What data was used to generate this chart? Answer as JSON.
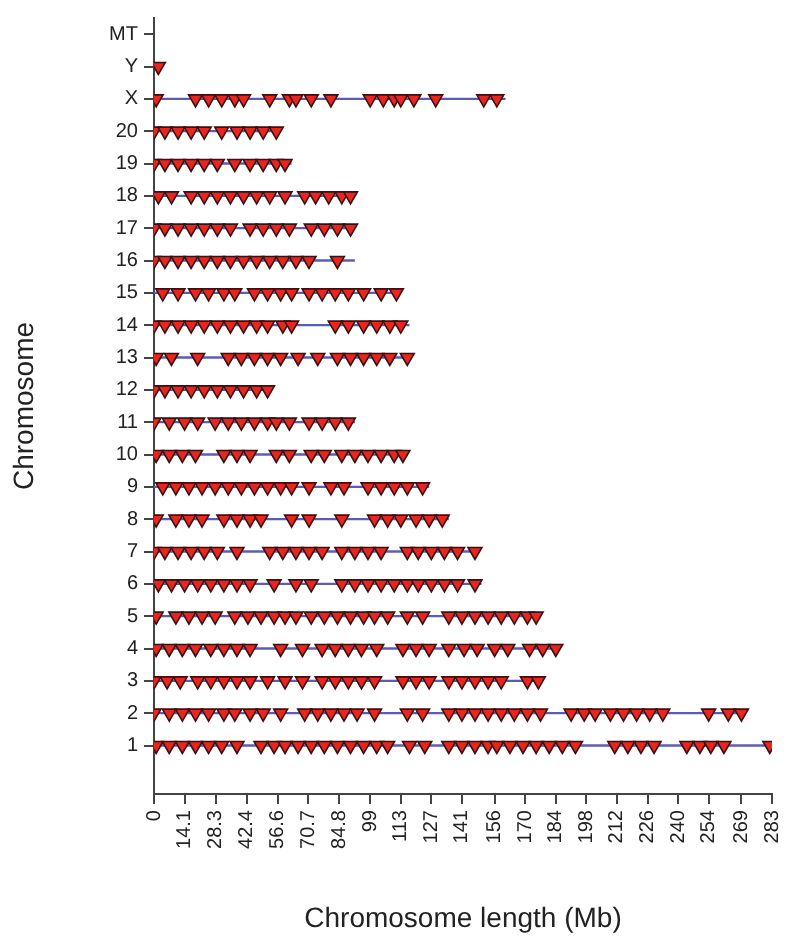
{
  "chart_data": {
    "type": "scatter",
    "xlabel": "Chromosome length (Mb)",
    "ylabel": "Chromosome",
    "xlim": [
      0,
      283
    ],
    "xticks": [
      0,
      14.1,
      28.3,
      42.4,
      56.6,
      70.7,
      84.8,
      99,
      113,
      127,
      141,
      156,
      170,
      184,
      198,
      212,
      226,
      240,
      254,
      269,
      283
    ],
    "ylim": [
      -0.5,
      23.5
    ],
    "yticks": [
      {
        "value": 1,
        "label": "1"
      },
      {
        "value": 2,
        "label": "2"
      },
      {
        "value": 3,
        "label": "3"
      },
      {
        "value": 4,
        "label": "4"
      },
      {
        "value": 5,
        "label": "5"
      },
      {
        "value": 6,
        "label": "6"
      },
      {
        "value": 7,
        "label": "7"
      },
      {
        "value": 8,
        "label": "8"
      },
      {
        "value": 9,
        "label": "9"
      },
      {
        "value": 10,
        "label": "10"
      },
      {
        "value": 11,
        "label": "11"
      },
      {
        "value": 12,
        "label": "12"
      },
      {
        "value": 13,
        "label": "13"
      },
      {
        "value": 14,
        "label": "14"
      },
      {
        "value": 15,
        "label": "15"
      },
      {
        "value": 16,
        "label": "16"
      },
      {
        "value": 17,
        "label": "17"
      },
      {
        "value": 18,
        "label": "18"
      },
      {
        "value": 19,
        "label": "19"
      },
      {
        "value": 20,
        "label": "20"
      },
      {
        "value": 21,
        "label": "X"
      },
      {
        "value": 22,
        "label": "Y"
      },
      {
        "value": 23,
        "label": "MT"
      }
    ],
    "grid": false,
    "legend": false,
    "marker": "triangle",
    "series": [
      {
        "type": "line",
        "marker": "none",
        "color": "#5c5cb8",
        "x": [
          0,
          282
        ],
        "values": [
          1,
          1
        ]
      },
      {
        "type": "line",
        "marker": "none",
        "color": "#5c5cb8",
        "x": [
          0,
          270
        ],
        "values": [
          2,
          2
        ]
      },
      {
        "type": "line",
        "marker": "none",
        "color": "#5c5cb8",
        "x": [
          0,
          178
        ],
        "values": [
          3,
          3
        ]
      },
      {
        "type": "line",
        "marker": "none",
        "color": "#5c5cb8",
        "x": [
          0,
          186
        ],
        "values": [
          4,
          4
        ]
      },
      {
        "type": "line",
        "marker": "none",
        "color": "#5c5cb8",
        "x": [
          0,
          175
        ],
        "values": [
          5,
          5
        ]
      },
      {
        "type": "line",
        "marker": "none",
        "color": "#5c5cb8",
        "x": [
          0,
          150
        ],
        "values": [
          6,
          6
        ]
      },
      {
        "type": "line",
        "marker": "none",
        "color": "#5c5cb8",
        "x": [
          0,
          148
        ],
        "values": [
          7,
          7
        ]
      },
      {
        "type": "line",
        "marker": "none",
        "color": "#5c5cb8",
        "x": [
          0,
          135
        ],
        "values": [
          8,
          8
        ]
      },
      {
        "type": "line",
        "marker": "none",
        "color": "#5c5cb8",
        "x": [
          0,
          126
        ],
        "values": [
          9,
          9
        ]
      },
      {
        "type": "line",
        "marker": "none",
        "color": "#5c5cb8",
        "x": [
          0,
          116
        ],
        "values": [
          10,
          10
        ]
      },
      {
        "type": "line",
        "marker": "none",
        "color": "#5c5cb8",
        "x": [
          0,
          92
        ],
        "values": [
          11,
          11
        ]
      },
      {
        "type": "line",
        "marker": "none",
        "color": "#5c5cb8",
        "x": [
          0,
          53
        ],
        "values": [
          12,
          12
        ]
      },
      {
        "type": "line",
        "marker": "none",
        "color": "#5c5cb8",
        "x": [
          0,
          118
        ],
        "values": [
          13,
          13
        ]
      },
      {
        "type": "line",
        "marker": "none",
        "color": "#5c5cb8",
        "x": [
          0,
          117
        ],
        "values": [
          14,
          14
        ]
      },
      {
        "type": "line",
        "marker": "none",
        "color": "#5c5cb8",
        "x": [
          0,
          113
        ],
        "values": [
          15,
          15
        ]
      },
      {
        "type": "line",
        "marker": "none",
        "color": "#5c5cb8",
        "x": [
          0,
          92
        ],
        "values": [
          16,
          16
        ]
      },
      {
        "type": "line",
        "marker": "none",
        "color": "#5c5cb8",
        "x": [
          0,
          92
        ],
        "values": [
          17,
          17
        ]
      },
      {
        "type": "line",
        "marker": "none",
        "color": "#5c5cb8",
        "x": [
          0,
          92
        ],
        "values": [
          18,
          18
        ]
      },
      {
        "type": "line",
        "marker": "none",
        "color": "#5c5cb8",
        "x": [
          0,
          63
        ],
        "values": [
          19,
          19
        ]
      },
      {
        "type": "line",
        "marker": "none",
        "color": "#5c5cb8",
        "x": [
          0,
          58
        ],
        "values": [
          20,
          20
        ]
      },
      {
        "type": "line",
        "marker": "none",
        "color": "#5c5cb8",
        "x": [
          0,
          161
        ],
        "values": [
          21,
          21
        ]
      },
      {
        "color": "#e8261f",
        "x": [
          1,
          7,
          13,
          19,
          25,
          31,
          38,
          49,
          55,
          60,
          66,
          72,
          78,
          84,
          90,
          96,
          102,
          107,
          117,
          124,
          135,
          141,
          147,
          153,
          157,
          163,
          169,
          175,
          181,
          187,
          193,
          211,
          217,
          223,
          229,
          244,
          250,
          255,
          261,
          282
        ],
        "values": [
          1,
          1,
          1,
          1,
          1,
          1,
          1,
          1,
          1,
          1,
          1,
          1,
          1,
          1,
          1,
          1,
          1,
          1,
          1,
          1,
          1,
          1,
          1,
          1,
          1,
          1,
          1,
          1,
          1,
          1,
          1,
          1,
          1,
          1,
          1,
          1,
          1,
          1,
          1,
          1
        ]
      },
      {
        "color": "#e8261f",
        "x": [
          0,
          7,
          13,
          19,
          25,
          32,
          37,
          44,
          50,
          58,
          69,
          75,
          81,
          87,
          93,
          101,
          116,
          123,
          135,
          141,
          147,
          153,
          159,
          165,
          171,
          177,
          191,
          197,
          202,
          209,
          215,
          221,
          227,
          233,
          254,
          263,
          269
        ],
        "values": [
          2,
          2,
          2,
          2,
          2,
          2,
          2,
          2,
          2,
          2,
          2,
          2,
          2,
          2,
          2,
          2,
          2,
          2,
          2,
          2,
          2,
          2,
          2,
          2,
          2,
          2,
          2,
          2,
          2,
          2,
          2,
          2,
          2,
          2,
          2,
          2,
          2
        ]
      },
      {
        "color": "#e8261f",
        "x": [
          0,
          6,
          12,
          20,
          26,
          32,
          38,
          44,
          52,
          60,
          68,
          77,
          83,
          89,
          95,
          101,
          114,
          120,
          126,
          135,
          141,
          147,
          153,
          159,
          171,
          176
        ],
        "values": [
          3,
          3,
          3,
          3,
          3,
          3,
          3,
          3,
          3,
          3,
          3,
          3,
          3,
          3,
          3,
          3,
          3,
          3,
          3,
          3,
          3,
          3,
          3,
          3,
          3,
          3
        ]
      },
      {
        "color": "#e8261f",
        "x": [
          1,
          7,
          13,
          19,
          26,
          32,
          38,
          44,
          58,
          68,
          77,
          83,
          89,
          95,
          102,
          114,
          120,
          126,
          135,
          142,
          148,
          156,
          162,
          172,
          178,
          184
        ],
        "values": [
          4,
          4,
          4,
          4,
          4,
          4,
          4,
          4,
          4,
          4,
          4,
          4,
          4,
          4,
          4,
          4,
          4,
          4,
          4,
          4,
          4,
          4,
          4,
          4,
          4,
          4
        ]
      },
      {
        "color": "#e8261f",
        "x": [
          1,
          10,
          16,
          22,
          28,
          37,
          43,
          49,
          55,
          60,
          65,
          72,
          78,
          84,
          90,
          96,
          101,
          107,
          116,
          123,
          135,
          141,
          147,
          153,
          159,
          165,
          171,
          175
        ],
        "values": [
          5,
          5,
          5,
          5,
          5,
          5,
          5,
          5,
          5,
          5,
          5,
          5,
          5,
          5,
          5,
          5,
          5,
          5,
          5,
          5,
          5,
          5,
          5,
          5,
          5,
          5,
          5,
          5
        ]
      },
      {
        "color": "#e8261f",
        "x": [
          2,
          8,
          14,
          20,
          26,
          32,
          38,
          44,
          55,
          65,
          72,
          86,
          92,
          98,
          104,
          110,
          116,
          121,
          127,
          133,
          139,
          147
        ],
        "values": [
          6,
          6,
          6,
          6,
          6,
          6,
          6,
          6,
          6,
          6,
          6,
          6,
          6,
          6,
          6,
          6,
          6,
          6,
          6,
          6,
          6,
          6
        ]
      },
      {
        "color": "#e8261f",
        "x": [
          0,
          5,
          11,
          17,
          23,
          29,
          38,
          53,
          59,
          65,
          71,
          77,
          86,
          92,
          98,
          104,
          116,
          121,
          127,
          133,
          139,
          147
        ],
        "values": [
          7,
          7,
          7,
          7,
          7,
          7,
          7,
          7,
          7,
          7,
          7,
          7,
          7,
          7,
          7,
          7,
          7,
          7,
          7,
          7,
          7,
          7
        ]
      },
      {
        "color": "#e8261f",
        "x": [
          1,
          10,
          16,
          22,
          32,
          38,
          44,
          49,
          63,
          71,
          86,
          101,
          107,
          113,
          120,
          126,
          132
        ],
        "values": [
          8,
          8,
          8,
          8,
          8,
          8,
          8,
          8,
          8,
          8,
          8,
          8,
          8,
          8,
          8,
          8,
          8
        ]
      },
      {
        "color": "#e8261f",
        "x": [
          4,
          10,
          16,
          22,
          28,
          34,
          40,
          46,
          52,
          58,
          63,
          71,
          81,
          87,
          98,
          104,
          110,
          116,
          123
        ],
        "values": [
          9,
          9,
          9,
          9,
          9,
          9,
          9,
          9,
          9,
          9,
          9,
          9,
          9,
          9,
          9,
          9,
          9,
          9,
          9
        ]
      },
      {
        "color": "#e8261f",
        "x": [
          1,
          7,
          13,
          19,
          32,
          38,
          44,
          56,
          62,
          72,
          78,
          86,
          92,
          98,
          104,
          110,
          114
        ],
        "values": [
          10,
          10,
          10,
          10,
          10,
          10,
          10,
          10,
          10,
          10,
          10,
          10,
          10,
          10,
          10,
          10,
          10
        ]
      },
      {
        "color": "#e8261f",
        "x": [
          0,
          7,
          14,
          20,
          28,
          34,
          40,
          46,
          52,
          56,
          62,
          71,
          77,
          83,
          89
        ],
        "values": [
          11,
          11,
          11,
          11,
          11,
          11,
          11,
          11,
          11,
          11,
          11,
          11,
          11,
          11,
          11
        ]
      },
      {
        "color": "#e8261f",
        "x": [
          0,
          5,
          11,
          17,
          23,
          29,
          35,
          41,
          47,
          52
        ],
        "values": [
          12,
          12,
          12,
          12,
          12,
          12,
          12,
          12,
          12,
          12
        ]
      },
      {
        "color": "#e8261f",
        "x": [
          1,
          8,
          20,
          34,
          40,
          46,
          52,
          58,
          66,
          75,
          84,
          90,
          96,
          102,
          108,
          116
        ],
        "values": [
          13,
          13,
          13,
          13,
          13,
          13,
          13,
          13,
          13,
          13,
          13,
          13,
          13,
          13,
          13,
          13
        ]
      },
      {
        "color": "#e8261f",
        "x": [
          0,
          5,
          11,
          17,
          23,
          29,
          35,
          41,
          47,
          52,
          59,
          63,
          83,
          89,
          96,
          102,
          108,
          113
        ],
        "values": [
          14,
          14,
          14,
          14,
          14,
          14,
          14,
          14,
          14,
          14,
          14,
          14,
          14,
          14,
          14,
          14,
          14,
          14
        ]
      },
      {
        "color": "#e8261f",
        "x": [
          4,
          11,
          19,
          25,
          32,
          37,
          46,
          52,
          58,
          63,
          71,
          77,
          83,
          89,
          96,
          104,
          111
        ],
        "values": [
          15,
          15,
          15,
          15,
          15,
          15,
          15,
          15,
          15,
          15,
          15,
          15,
          15,
          15,
          15,
          15,
          15
        ]
      },
      {
        "color": "#e8261f",
        "x": [
          0,
          5,
          11,
          17,
          23,
          29,
          35,
          41,
          47,
          53,
          59,
          65,
          71,
          84
        ],
        "values": [
          16,
          16,
          16,
          16,
          16,
          16,
          16,
          16,
          16,
          16,
          16,
          16,
          16,
          16
        ]
      },
      {
        "color": "#e8261f",
        "x": [
          0,
          5,
          11,
          17,
          23,
          29,
          35,
          44,
          50,
          56,
          62,
          72,
          78,
          84,
          90
        ],
        "values": [
          17,
          17,
          17,
          17,
          17,
          17,
          17,
          17,
          17,
          17,
          17,
          17,
          17,
          17,
          17
        ]
      },
      {
        "color": "#e8261f",
        "x": [
          2,
          8,
          17,
          23,
          29,
          35,
          41,
          47,
          53,
          60,
          69,
          74,
          80,
          86,
          90
        ],
        "values": [
          18,
          18,
          18,
          18,
          18,
          18,
          18,
          18,
          18,
          18,
          18,
          18,
          18,
          18,
          18
        ]
      },
      {
        "color": "#e8261f",
        "x": [
          0,
          5,
          11,
          17,
          23,
          29,
          37,
          44,
          50,
          56,
          60
        ],
        "values": [
          19,
          19,
          19,
          19,
          19,
          19,
          19,
          19,
          19,
          19,
          19
        ]
      },
      {
        "color": "#e8261f",
        "x": [
          0,
          5,
          11,
          17,
          23,
          31,
          38,
          44,
          50,
          56
        ],
        "values": [
          20,
          20,
          20,
          20,
          20,
          20,
          20,
          20,
          20,
          20
        ]
      },
      {
        "color": "#e8261f",
        "x": [
          1,
          19,
          25,
          31,
          37,
          41,
          53,
          62,
          65,
          72,
          81,
          99,
          105,
          110,
          113,
          119,
          129,
          151,
          157
        ],
        "values": [
          21,
          21,
          21,
          21,
          21,
          21,
          21,
          21,
          21,
          21,
          21,
          21,
          21,
          21,
          21,
          21,
          21,
          21,
          21
        ]
      },
      {
        "color": "#e8261f",
        "x": [
          2
        ],
        "values": [
          22
        ]
      }
    ]
  }
}
